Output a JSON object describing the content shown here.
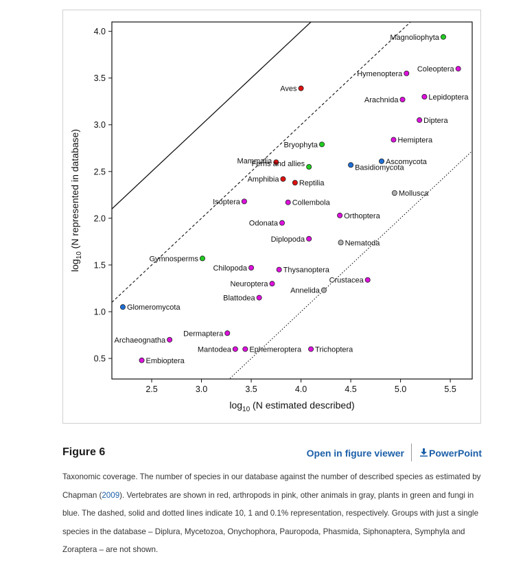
{
  "figure": {
    "label": "Figure 6",
    "open_viewer": "Open in figure viewer",
    "powerpoint": "PowerPoint",
    "caption_before": "Taxonomic coverage. The number of species in our database against the number of described species as estimated by Chapman (",
    "caption_cite": "2009",
    "caption_after": "). Vertebrates are shown in red, arthropods in pink, other animals in gray, plants in green and fungi in blue. The dashed, solid and dotted lines indicate 10, 1 and 0.1% representation, respectively. Groups with just a single species in the database – Diplura, Mycetozoa, Onychophora, Pauropoda, Phasmida, Siphonaptera, Symphyla and Zoraptera – are not shown."
  },
  "colors": {
    "vertebrates": "#dd1111",
    "arthropods": "#dd11dd",
    "other_animals": "#b0b0b0",
    "plants": "#22cc22",
    "fungi": "#1f6fd6",
    "link": "#1b5fa8"
  },
  "chart_data": {
    "type": "scatter",
    "xlabel": "log10 (N estimated described)",
    "ylabel": "log10 (N represented in database)",
    "xlim": [
      2.1,
      5.72
    ],
    "ylim": [
      0.28,
      4.1
    ],
    "xticks": [
      "2.5",
      "3.0",
      "3.5",
      "4.0",
      "4.5",
      "5.0",
      "5.5"
    ],
    "yticks": [
      "0.5",
      "1.0",
      "1.5",
      "2.0",
      "2.5",
      "3.0",
      "3.5",
      "4.0"
    ],
    "reference_lines": [
      {
        "style": "dashed",
        "offset": -1
      },
      {
        "style": "solid",
        "offset": 0
      },
      {
        "style": "dotted",
        "offset": -3
      }
    ],
    "points": [
      {
        "name": "Magnoliophyta",
        "x": 5.43,
        "y": 3.94,
        "group": "plants"
      },
      {
        "name": "Coleoptera",
        "x": 5.58,
        "y": 3.6,
        "group": "arthropods"
      },
      {
        "name": "Hymenoptera",
        "x": 5.06,
        "y": 3.55,
        "group": "arthropods"
      },
      {
        "name": "Aves",
        "x": 4.0,
        "y": 3.39,
        "group": "vertebrates"
      },
      {
        "name": "Lepidoptera",
        "x": 5.24,
        "y": 3.3,
        "group": "arthropods"
      },
      {
        "name": "Arachnida",
        "x": 5.02,
        "y": 3.27,
        "group": "arthropods"
      },
      {
        "name": "Diptera",
        "x": 5.19,
        "y": 3.05,
        "group": "arthropods"
      },
      {
        "name": "Hemiptera",
        "x": 4.93,
        "y": 2.84,
        "group": "arthropods"
      },
      {
        "name": "Bryophyta",
        "x": 4.21,
        "y": 2.79,
        "group": "plants"
      },
      {
        "name": "Ascomycota",
        "x": 4.81,
        "y": 2.61,
        "group": "fungi"
      },
      {
        "name": "Mammalia",
        "x": 3.75,
        "y": 2.6,
        "group": "vertebrates"
      },
      {
        "name": "Basidiomycota",
        "x": 4.5,
        "y": 2.57,
        "group": "fungi"
      },
      {
        "name": "Ferns and allies",
        "x": 4.08,
        "y": 2.55,
        "group": "plants"
      },
      {
        "name": "Amphibia",
        "x": 3.82,
        "y": 2.42,
        "group": "vertebrates"
      },
      {
        "name": "Reptilia",
        "x": 3.94,
        "y": 2.38,
        "group": "vertebrates"
      },
      {
        "name": "Mollusca",
        "x": 4.94,
        "y": 2.27,
        "group": "other_animals"
      },
      {
        "name": "Isoptera",
        "x": 3.43,
        "y": 2.18,
        "group": "arthropods"
      },
      {
        "name": "Collembola",
        "x": 3.87,
        "y": 2.17,
        "group": "arthropods"
      },
      {
        "name": "Orthoptera",
        "x": 4.39,
        "y": 2.03,
        "group": "arthropods"
      },
      {
        "name": "Odonata",
        "x": 3.81,
        "y": 1.95,
        "group": "arthropods"
      },
      {
        "name": "Diplopoda",
        "x": 4.08,
        "y": 1.78,
        "group": "arthropods"
      },
      {
        "name": "Nematoda",
        "x": 4.4,
        "y": 1.74,
        "group": "other_animals"
      },
      {
        "name": "Gymnosperms",
        "x": 3.01,
        "y": 1.57,
        "group": "plants"
      },
      {
        "name": "Chilopoda",
        "x": 3.5,
        "y": 1.47,
        "group": "arthropods"
      },
      {
        "name": "Thysanoptera",
        "x": 3.78,
        "y": 1.45,
        "group": "arthropods"
      },
      {
        "name": "Crustacea",
        "x": 4.67,
        "y": 1.34,
        "group": "arthropods"
      },
      {
        "name": "Neuroptera",
        "x": 3.71,
        "y": 1.3,
        "group": "arthropods"
      },
      {
        "name": "Annelida",
        "x": 4.23,
        "y": 1.23,
        "group": "other_animals"
      },
      {
        "name": "Blattodea",
        "x": 3.58,
        "y": 1.15,
        "group": "arthropods"
      },
      {
        "name": "Glomeromycota",
        "x": 2.21,
        "y": 1.05,
        "group": "fungi"
      },
      {
        "name": "Dermaptera",
        "x": 3.26,
        "y": 0.77,
        "group": "arthropods"
      },
      {
        "name": "Archaeognatha",
        "x": 2.68,
        "y": 0.7,
        "group": "arthropods"
      },
      {
        "name": "Mantodea",
        "x": 3.34,
        "y": 0.6,
        "group": "arthropods"
      },
      {
        "name": "Ephemeroptera",
        "x": 3.44,
        "y": 0.6,
        "group": "arthropods"
      },
      {
        "name": "Trichoptera",
        "x": 4.1,
        "y": 0.6,
        "group": "arthropods"
      },
      {
        "name": "Embioptera",
        "x": 2.4,
        "y": 0.48,
        "group": "arthropods"
      }
    ]
  }
}
